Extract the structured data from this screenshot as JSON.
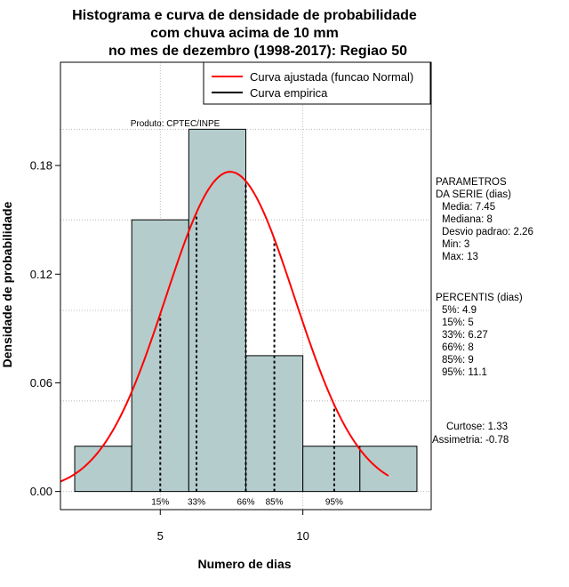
{
  "chart_data": {
    "type": "bar",
    "title_lines": [
      "Histograma e curva de densidade de probabilidade",
      "com chuva acima de 10 mm",
      "no mes de dezembro (1998-2017): Regiao 50"
    ],
    "xlabel": "Numero de dias",
    "ylabel": "Densidade de probabilidade",
    "xlim": [
      1.5,
      14.5
    ],
    "ylim": [
      -0.01,
      0.237
    ],
    "x_ticks": [
      5,
      10
    ],
    "x_tick_labels": [
      "5",
      "10"
    ],
    "y_ticks": [
      0.0,
      0.06,
      0.12,
      0.18
    ],
    "y_tick_labels": [
      "0.00",
      "0.06",
      "0.12",
      "0.18"
    ],
    "bins": [
      {
        "start": 2,
        "end": 4,
        "density": 0.025
      },
      {
        "start": 4,
        "end": 6,
        "density": 0.15
      },
      {
        "start": 6,
        "end": 8,
        "density": 0.2
      },
      {
        "start": 8,
        "end": 10,
        "density": 0.075
      },
      {
        "start": 10,
        "end": 12,
        "density": 0.025
      },
      {
        "start": 12,
        "end": 14,
        "density": 0.025
      }
    ],
    "normal_fit": {
      "mean": 7.45,
      "sd": 2.26,
      "range": [
        1.5,
        13.0
      ]
    },
    "grid": true,
    "credit": "Produto: CPTEC/INPE",
    "legend": {
      "placement": "top-right",
      "items": [
        {
          "label": "Curva ajustada (funcao Normal)",
          "color": "#ff0000"
        },
        {
          "label": "Curva empirica",
          "color": "#000000"
        }
      ]
    },
    "percentile_marks": [
      {
        "label": "15%",
        "x": 5
      },
      {
        "label": "33%",
        "x": 6.27
      },
      {
        "label": "66%",
        "x": 8
      },
      {
        "label": "85%",
        "x": 9
      },
      {
        "label": "95%",
        "x": 11.1
      }
    ],
    "params": {
      "heading": [
        "PARAMETROS",
        "DA SERIE (dias)"
      ],
      "lines": [
        "Media: 7.45",
        "Mediana: 8",
        "Desvio padrao: 2.26",
        "Min: 3",
        "Max: 13"
      ]
    },
    "percentis": {
      "heading": "PERCENTIS (dias)",
      "lines": [
        "5%: 4.9",
        "15%: 5",
        "33%: 6.27",
        "66%: 8",
        "85%: 9",
        "95%: 11.1"
      ]
    },
    "shape": {
      "lines": [
        "Curtose: 1.33",
        "Assimetria: -0.78"
      ]
    },
    "colors": {
      "bar_fill": "#b5cccc",
      "curve": "#ff0000",
      "grid": "#aaaaaa",
      "axes": "#000000"
    }
  }
}
